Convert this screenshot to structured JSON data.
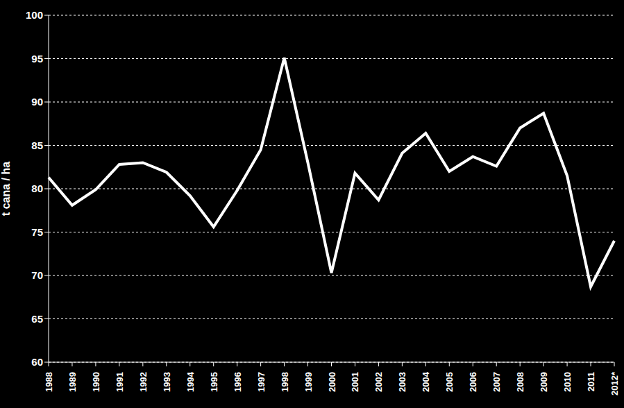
{
  "chart_data": {
    "type": "line",
    "y_label": "t cana / ha",
    "categories": [
      "1988",
      "1989",
      "1990",
      "1991",
      "1992",
      "1993",
      "1994",
      "1995",
      "1996",
      "1997",
      "1998",
      "1999",
      "2000",
      "2001",
      "2002",
      "2003",
      "2004",
      "2005",
      "2006",
      "2007",
      "2008",
      "2009",
      "2010",
      "2011",
      "2012*"
    ],
    "values": [
      81.3,
      78.1,
      79.9,
      82.8,
      83.0,
      81.9,
      79.2,
      75.6,
      79.8,
      84.5,
      95.1,
      83.0,
      70.3,
      81.8,
      78.7,
      84.1,
      86.4,
      82.0,
      83.7,
      82.6,
      87.0,
      88.7,
      81.5,
      68.7,
      74.0
    ],
    "color": "#ffffff",
    "ylim": [
      60,
      100
    ],
    "yticks": [
      60,
      65,
      70,
      75,
      80,
      85,
      90,
      95,
      100
    ],
    "grid": true
  }
}
